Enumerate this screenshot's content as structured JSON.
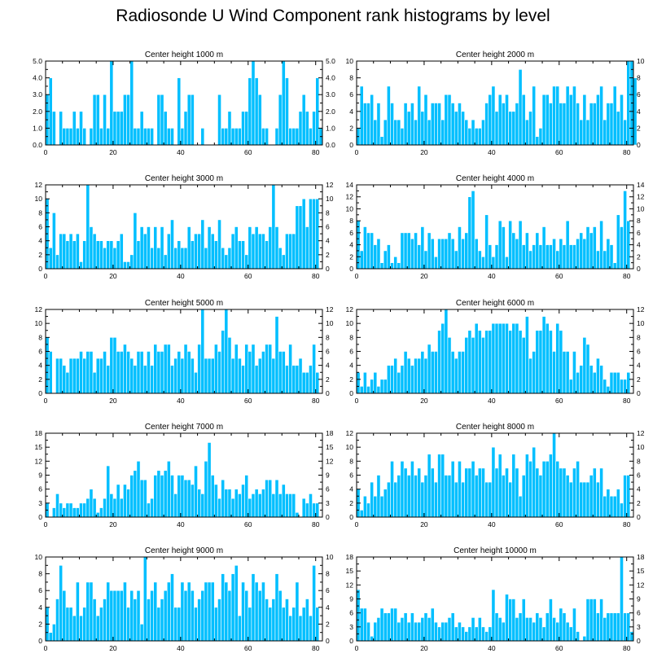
{
  "title": "Radiosonde U Wind Component rank histograms by level",
  "colors": {
    "bar": "#00bfff",
    "bar_edge": "#ffffff",
    "axis": "#000000"
  },
  "chart_data": [
    {
      "type": "bar",
      "title": "Center height 1000 m",
      "xlim": [
        0,
        82
      ],
      "ylim": [
        0,
        5
      ],
      "xticks": [
        0,
        20,
        40,
        60,
        80
      ],
      "yticks": [
        0,
        1,
        2,
        3,
        4,
        5
      ],
      "ytick_labels": [
        "0.0",
        "1.0",
        "2.0",
        "3.0",
        "4.0",
        "5.0"
      ],
      "values": [
        3,
        4,
        2,
        0,
        2,
        1,
        1,
        1,
        2,
        1,
        2,
        1,
        0,
        1,
        3,
        3,
        1,
        3,
        1,
        5,
        2,
        2,
        2,
        3,
        3,
        5,
        1,
        1,
        2,
        1,
        1,
        1,
        0,
        3,
        3,
        2,
        1,
        1,
        0,
        4,
        1,
        2,
        3,
        3,
        0,
        0,
        1,
        0,
        0,
        0,
        0,
        3,
        1,
        1,
        2,
        1,
        1,
        1,
        2,
        2,
        4,
        5,
        4,
        3,
        1,
        1,
        0,
        0,
        1,
        3,
        5,
        4,
        1,
        1,
        1,
        2,
        3,
        2,
        1,
        2,
        4,
        1
      ]
    },
    {
      "type": "bar",
      "title": "Center height 2000 m",
      "xlim": [
        0,
        82
      ],
      "ylim": [
        0,
        10
      ],
      "xticks": [
        0,
        20,
        40,
        60,
        80
      ],
      "yticks": [
        0,
        2,
        4,
        6,
        8,
        10
      ],
      "ytick_labels": [
        "0",
        "2",
        "4",
        "6",
        "8",
        "10"
      ],
      "values": [
        2,
        7,
        5,
        5,
        6,
        3,
        5,
        1,
        3,
        7,
        5,
        3,
        3,
        2,
        5,
        4,
        5,
        3,
        7,
        4,
        6,
        3,
        5,
        5,
        5,
        3,
        6,
        6,
        5,
        4,
        5,
        4,
        3,
        2,
        3,
        2,
        2,
        3,
        5,
        6,
        7,
        4,
        6,
        5,
        6,
        4,
        4,
        5,
        9,
        6,
        3,
        4,
        7,
        1,
        2,
        6,
        6,
        5,
        7,
        7,
        5,
        5,
        7,
        6,
        7,
        5,
        3,
        6,
        3,
        5,
        5,
        6,
        7,
        3,
        5,
        5,
        7,
        4,
        6,
        3,
        10,
        10,
        8
      ]
    },
    {
      "type": "bar",
      "title": "Center height 3000 m",
      "xlim": [
        0,
        82
      ],
      "ylim": [
        0,
        12
      ],
      "xticks": [
        0,
        20,
        40,
        60,
        80
      ],
      "yticks": [
        0,
        2,
        4,
        6,
        8,
        10,
        12
      ],
      "ytick_labels": [
        "0",
        "2",
        "4",
        "6",
        "8",
        "10",
        "12"
      ],
      "values": [
        10,
        3,
        8,
        2,
        5,
        5,
        4,
        5,
        4,
        5,
        1,
        4,
        12,
        6,
        5,
        4,
        4,
        3,
        4,
        4,
        3,
        4,
        5,
        1,
        1,
        2,
        8,
        4,
        6,
        5,
        6,
        3,
        6,
        3,
        6,
        2,
        5,
        7,
        3,
        4,
        3,
        3,
        6,
        4,
        5,
        5,
        7,
        3,
        6,
        5,
        4,
        7,
        3,
        2,
        3,
        5,
        6,
        4,
        4,
        2,
        6,
        5,
        6,
        5,
        5,
        4,
        6,
        12,
        6,
        3,
        2,
        5,
        5,
        5,
        9,
        9,
        10,
        6,
        10,
        10,
        10,
        0
      ]
    },
    {
      "type": "bar",
      "title": "Center height 4000 m",
      "xlim": [
        0,
        82
      ],
      "ylim": [
        0,
        14
      ],
      "xticks": [
        0,
        20,
        40,
        60,
        80
      ],
      "yticks": [
        0,
        2,
        4,
        6,
        8,
        10,
        12,
        14
      ],
      "ytick_labels": [
        "0",
        "2",
        "4",
        "6",
        "8",
        "10",
        "12",
        "14"
      ],
      "values": [
        8,
        3,
        7,
        6,
        6,
        4,
        5,
        1,
        3,
        4,
        1,
        2,
        1,
        6,
        6,
        6,
        5,
        6,
        4,
        7,
        3,
        6,
        5,
        2,
        5,
        5,
        5,
        6,
        5,
        3,
        7,
        5,
        6,
        12,
        13,
        5,
        3,
        2,
        9,
        4,
        2,
        4,
        8,
        7,
        2,
        8,
        6,
        5,
        8,
        4,
        6,
        3,
        4,
        6,
        4,
        7,
        4,
        4,
        5,
        3,
        5,
        4,
        8,
        4,
        4,
        5,
        6,
        5,
        7,
        6,
        7,
        3,
        8,
        3,
        5,
        4,
        1,
        9,
        7,
        13,
        8,
        0
      ]
    },
    {
      "type": "bar",
      "title": "Center height 5000 m",
      "xlim": [
        0,
        82
      ],
      "ylim": [
        0,
        12
      ],
      "xticks": [
        0,
        20,
        40,
        60,
        80
      ],
      "yticks": [
        0,
        2,
        4,
        6,
        8,
        10,
        12
      ],
      "ytick_labels": [
        "0",
        "2",
        "4",
        "6",
        "8",
        "10",
        "12"
      ],
      "values": [
        8,
        6,
        0,
        5,
        5,
        4,
        3,
        5,
        5,
        5,
        6,
        5,
        6,
        6,
        3,
        5,
        5,
        6,
        4,
        8,
        8,
        6,
        6,
        7,
        6,
        5,
        4,
        6,
        6,
        4,
        6,
        4,
        7,
        6,
        6,
        7,
        7,
        4,
        5,
        6,
        5,
        7,
        6,
        5,
        3,
        7,
        12,
        5,
        5,
        5,
        7,
        6,
        9,
        12,
        8,
        5,
        7,
        5,
        4,
        7,
        6,
        7,
        4,
        5,
        6,
        7,
        7,
        5,
        11,
        6,
        6,
        4,
        7,
        4,
        4,
        5,
        3,
        3,
        4,
        7,
        3,
        0
      ]
    },
    {
      "type": "bar",
      "title": "Center height 6000 m",
      "xlim": [
        0,
        82
      ],
      "ylim": [
        0,
        12
      ],
      "xticks": [
        0,
        20,
        40,
        60,
        80
      ],
      "yticks": [
        0,
        2,
        4,
        6,
        8,
        10,
        12
      ],
      "ytick_labels": [
        "0",
        "2",
        "4",
        "6",
        "8",
        "10",
        "12"
      ],
      "values": [
        3,
        1,
        3,
        1,
        2,
        3,
        1,
        2,
        2,
        4,
        4,
        5,
        3,
        4,
        6,
        5,
        4,
        5,
        5,
        6,
        5,
        7,
        6,
        6,
        9,
        10,
        12,
        8,
        6,
        5,
        6,
        6,
        8,
        9,
        8,
        10,
        9,
        8,
        9,
        9,
        10,
        10,
        10,
        10,
        10,
        9,
        10,
        10,
        9,
        8,
        11,
        5,
        6,
        9,
        9,
        11,
        10,
        9,
        6,
        10,
        9,
        6,
        6,
        2,
        6,
        3,
        4,
        8,
        7,
        4,
        3,
        5,
        4,
        2,
        1,
        3,
        3,
        3,
        2,
        2,
        3,
        0
      ]
    },
    {
      "type": "bar",
      "title": "Center height 7000 m",
      "xlim": [
        0,
        82
      ],
      "ylim": [
        0,
        18
      ],
      "xticks": [
        0,
        20,
        40,
        60,
        80
      ],
      "yticks": [
        0,
        3,
        6,
        9,
        12,
        15,
        18
      ],
      "ytick_labels": [
        "0",
        "3",
        "6",
        "9",
        "12",
        "15",
        "18"
      ],
      "values": [
        3,
        0,
        2,
        5,
        3,
        2,
        3,
        3,
        2,
        2,
        3,
        3,
        4,
        6,
        4,
        1,
        2,
        4,
        11,
        5,
        4,
        7,
        4,
        7,
        6,
        9,
        10,
        12,
        8,
        8,
        3,
        4,
        9,
        10,
        9,
        10,
        12,
        9,
        5,
        9,
        9,
        8,
        8,
        7,
        11,
        6,
        5,
        12,
        16,
        9,
        7,
        4,
        8,
        6,
        6,
        4,
        6,
        5,
        7,
        9,
        4,
        5,
        6,
        5,
        6,
        8,
        8,
        5,
        8,
        5,
        7,
        5,
        5,
        5,
        1,
        0,
        4,
        3,
        5,
        3,
        3,
        0
      ]
    },
    {
      "type": "bar",
      "title": "Center height 8000 m",
      "xlim": [
        0,
        82
      ],
      "ylim": [
        0,
        12
      ],
      "xticks": [
        0,
        20,
        40,
        60,
        80
      ],
      "yticks": [
        0,
        2,
        4,
        6,
        8,
        10,
        12
      ],
      "ytick_labels": [
        "0",
        "2",
        "4",
        "6",
        "8",
        "10",
        "12"
      ],
      "values": [
        4,
        1,
        3,
        2,
        5,
        3,
        6,
        3,
        4,
        5,
        8,
        5,
        6,
        8,
        7,
        6,
        8,
        6,
        7,
        5,
        6,
        9,
        7,
        5,
        9,
        9,
        6,
        6,
        8,
        5,
        8,
        5,
        7,
        7,
        8,
        6,
        7,
        7,
        5,
        5,
        10,
        7,
        9,
        6,
        7,
        5,
        9,
        7,
        3,
        6,
        9,
        8,
        10,
        7,
        6,
        8,
        8,
        9,
        12,
        8,
        7,
        7,
        6,
        5,
        7,
        8,
        5,
        5,
        5,
        6,
        7,
        5,
        7,
        3,
        4,
        3,
        3,
        4,
        2,
        6,
        6,
        0
      ]
    },
    {
      "type": "bar",
      "title": "Center height 9000 m",
      "xlim": [
        0,
        82
      ],
      "ylim": [
        0,
        10
      ],
      "xticks": [
        0,
        20,
        40,
        60,
        80
      ],
      "yticks": [
        0,
        2,
        4,
        6,
        8,
        10
      ],
      "ytick_labels": [
        "0",
        "2",
        "4",
        "6",
        "8",
        "10"
      ],
      "values": [
        4,
        1,
        2,
        5,
        9,
        6,
        4,
        4,
        3,
        7,
        3,
        4,
        7,
        7,
        5,
        3,
        4,
        5,
        7,
        6,
        6,
        6,
        6,
        7,
        4,
        6,
        5,
        6,
        2,
        10,
        5,
        6,
        7,
        4,
        5,
        6,
        7,
        8,
        4,
        4,
        7,
        6,
        7,
        6,
        4,
        5,
        6,
        7,
        7,
        7,
        4,
        5,
        8,
        7,
        6,
        8,
        9,
        3,
        7,
        6,
        4,
        8,
        7,
        6,
        7,
        5,
        4,
        5,
        8,
        6,
        4,
        5,
        3,
        4,
        7,
        3,
        4,
        5,
        3,
        9,
        4,
        0
      ]
    },
    {
      "type": "bar",
      "title": "Center height 10000 m",
      "xlim": [
        0,
        82
      ],
      "ylim": [
        0,
        18
      ],
      "xticks": [
        0,
        20,
        40,
        60,
        80
      ],
      "yticks": [
        0,
        3,
        6,
        9,
        12,
        15,
        18
      ],
      "ytick_labels": [
        "0",
        "3",
        "6",
        "9",
        "12",
        "15",
        "18"
      ],
      "values": [
        11,
        7,
        7,
        4,
        1,
        4,
        5,
        7,
        6,
        6,
        7,
        7,
        4,
        5,
        6,
        4,
        6,
        4,
        4,
        5,
        6,
        5,
        7,
        4,
        3,
        4,
        4,
        5,
        6,
        3,
        4,
        3,
        2,
        3,
        5,
        3,
        5,
        3,
        2,
        3,
        11,
        6,
        5,
        4,
        10,
        9,
        9,
        5,
        6,
        9,
        5,
        5,
        4,
        6,
        5,
        3,
        6,
        9,
        5,
        4,
        7,
        6,
        4,
        3,
        7,
        2,
        0,
        1,
        9,
        9,
        9,
        6,
        9,
        5,
        6,
        6,
        6,
        6,
        18,
        6,
        6,
        2
      ]
    }
  ]
}
